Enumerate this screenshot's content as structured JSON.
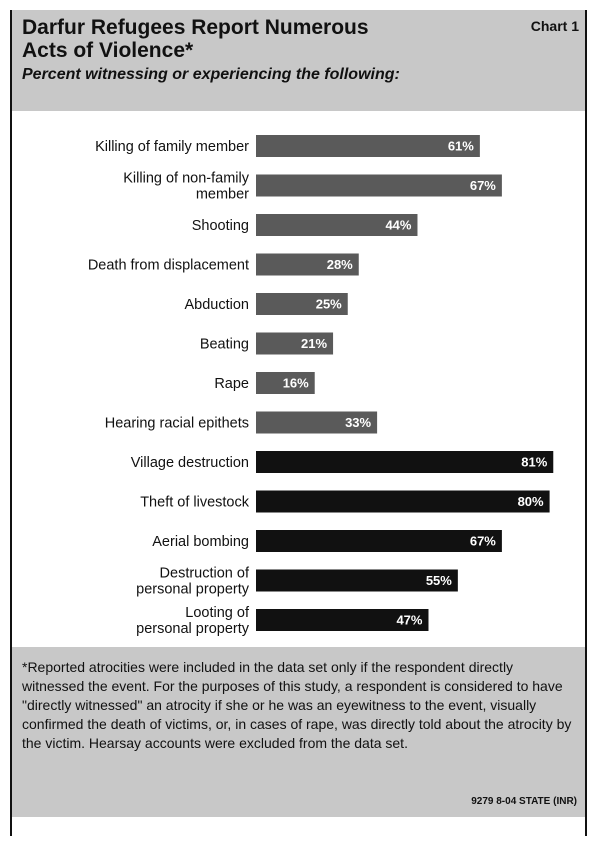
{
  "header": {
    "title": "Darfur Refugees Report Numerous\nActs of Violence*",
    "chart_number": "Chart 1",
    "subtitle": "Percent witnessing or experiencing the following:"
  },
  "colors": {
    "header_bg": "#c8c8c8",
    "group1_bar": "#5a5a5a",
    "group2_bar": "#111111"
  },
  "chart_data": {
    "type": "bar",
    "orientation": "horizontal",
    "title": "Darfur Refugees Report Numerous Acts of Violence*",
    "subtitle": "Percent witnessing or experiencing the following:",
    "categories": [
      "Killing of family member",
      "Killing of non-family member",
      "Shooting",
      "Death from displacement",
      "Abduction",
      "Beating",
      "Rape",
      "Hearing racial epithets",
      "Village destruction",
      "Theft of livestock",
      "Aerial bombing",
      "Destruction of personal property",
      "Looting of personal property"
    ],
    "category_label_lines": [
      [
        "Killing of family member"
      ],
      [
        "Killing of non-family",
        "member"
      ],
      [
        "Shooting"
      ],
      [
        "Death from displacement"
      ],
      [
        "Abduction"
      ],
      [
        "Beating"
      ],
      [
        "Rape"
      ],
      [
        "Hearing racial epithets"
      ],
      [
        "Village destruction"
      ],
      [
        "Theft of livestock"
      ],
      [
        "Aerial bombing"
      ],
      [
        "Destruction of",
        "personal property"
      ],
      [
        "Looting of",
        "personal property"
      ]
    ],
    "values": [
      61,
      67,
      44,
      28,
      25,
      21,
      16,
      33,
      81,
      80,
      67,
      55,
      47
    ],
    "value_labels": [
      "61%",
      "67%",
      "44%",
      "28%",
      "25%",
      "21%",
      "16%",
      "33%",
      "81%",
      "80%",
      "67%",
      "55%",
      "47%"
    ],
    "groups": [
      1,
      1,
      1,
      1,
      1,
      1,
      1,
      1,
      2,
      2,
      2,
      2,
      2
    ],
    "xlim": [
      0,
      100
    ],
    "xlabel": "",
    "ylabel": "",
    "grid": false,
    "legend": "none"
  },
  "footnote": {
    "text": "*Reported atrocities were included in the data set only if the respondent directly witnessed the event.  For the purposes of this study, a respondent is considered to have \"directly witnessed\" an atrocity if she or he was an eyewitness to the event, visually confirmed the death of victims, or, in cases of rape, was directly told about the atrocity by the victim.  Hearsay accounts were excluded from the data set.",
    "source": "9279 8-04 STATE (INR)"
  }
}
